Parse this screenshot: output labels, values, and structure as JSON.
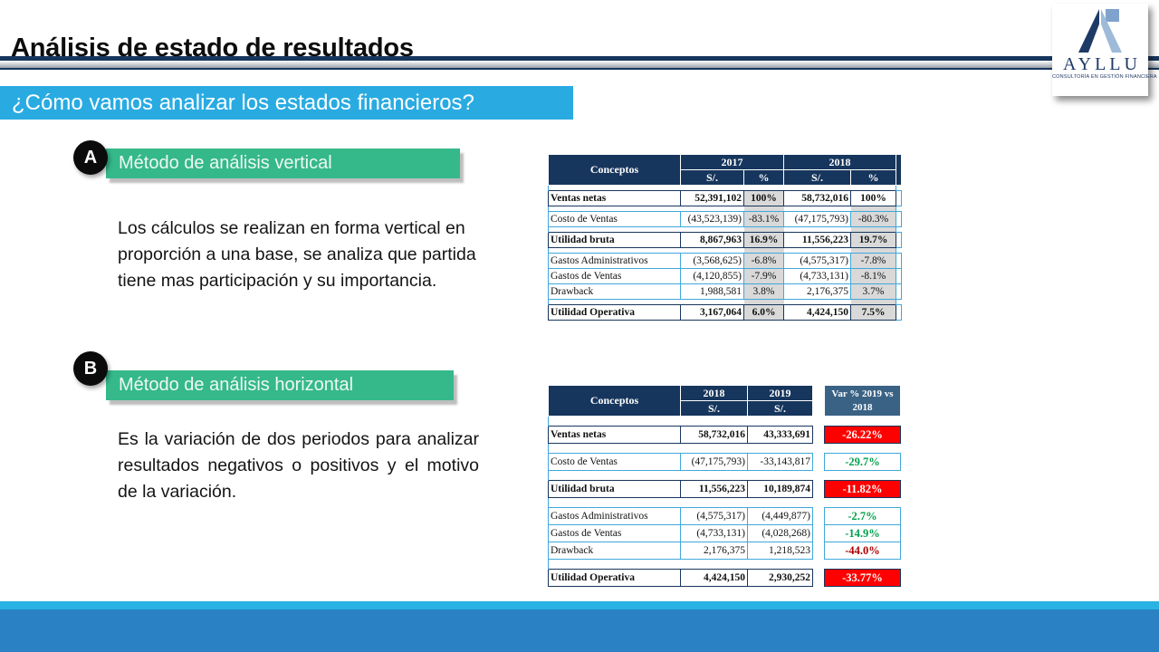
{
  "slide": {
    "title": "Análisis de estado de resultados",
    "banner": "¿Cómo vamos analizar los estados financieros?"
  },
  "logo": {
    "name": "AYLLU",
    "tagline": "CONSULTORÍA EN GESTIÓN FINANCIERA"
  },
  "methods": [
    {
      "letter": "A",
      "label": "Método de análisis vertical",
      "description": "Los cálculos se realizan en forma vertical en proporción a una base, se analiza que partida tiene mas participación y su importancia."
    },
    {
      "letter": "B",
      "label": "Método de análisis horizontal",
      "description": "Es la variación de dos periodos para analizar resultados negativos o positivos y  el motivo de la variación."
    }
  ],
  "colors": {
    "banner_blue": "#29ABE2",
    "footer_cyan": "#29B2E2",
    "footer_blue": "#2A82C5",
    "header_navy": "#17365D",
    "var_header_blue": "#3A6285",
    "green_banner": "#35B98A",
    "border_cyan": "#41A7DC",
    "gray_cell": "#D9D9D9",
    "red": "#FF0000",
    "green": "#00A14B",
    "dark_red": "#AE0000"
  },
  "chart_data": [
    {
      "type": "table",
      "header": {
        "concept": "Conceptos",
        "groups": [
          {
            "year": "2017",
            "subcols": [
              "S/.",
              "%"
            ]
          },
          {
            "year": "2018",
            "subcols": [
              "S/.",
              "%"
            ]
          }
        ]
      },
      "rows": [
        {
          "concept": "Ventas netas",
          "cells": [
            "52,391,102",
            "100%",
            "58,732,016",
            "100%"
          ],
          "bold": true,
          "highlight_last_pct": true,
          "spacer_before": true
        },
        {
          "concept": "Costo de Ventas",
          "cells": [
            "(43,523,139)",
            "-83.1%",
            "(47,175,793)",
            "-80.3%"
          ],
          "spacer_before": true
        },
        {
          "concept": "Utilidad bruta",
          "cells": [
            "8,867,963",
            "16.9%",
            "11,556,223",
            "19.7%"
          ],
          "bold": true,
          "spacer_before": true
        },
        {
          "concept": "Gastos Administrativos",
          "cells": [
            "(3,568,625)",
            "-6.8%",
            "(4,575,317)",
            "-7.8%"
          ],
          "spacer_before": true
        },
        {
          "concept": "Gastos de Ventas",
          "cells": [
            "(4,120,855)",
            "-7.9%",
            "(4,733,131)",
            "-8.1%"
          ]
        },
        {
          "concept": "Drawback",
          "cells": [
            "1,988,581",
            "3.8%",
            "2,176,375",
            "3.7%"
          ]
        },
        {
          "concept": "Utilidad Operativa",
          "cells": [
            "3,167,064",
            "6.0%",
            "4,424,150",
            "7.5%"
          ],
          "bold": true,
          "spacer_before": true
        }
      ]
    },
    {
      "type": "table",
      "header": {
        "concept": "Conceptos",
        "cols": [
          {
            "year": "2018",
            "sub": "S/."
          },
          {
            "year": "2019",
            "sub": "S/."
          }
        ],
        "var": "Var %  2019 vs 2018"
      },
      "rows": [
        {
          "concept": "Ventas netas",
          "cells": [
            "58,732,016",
            "43,333,691"
          ],
          "var": "-26.22%",
          "var_style": "red",
          "bold": true,
          "spacer_before": true
        },
        {
          "concept": "Costo de Ventas",
          "cells": [
            "(47,175,793)",
            "-33,143,817"
          ],
          "var": "-29.7%",
          "var_style": "green",
          "spacer_before": true
        },
        {
          "concept": "Utilidad bruta",
          "cells": [
            "11,556,223",
            "10,189,874"
          ],
          "var": "-11.82%",
          "var_style": "red",
          "bold": true,
          "spacer_before": true
        },
        {
          "concept": "Gastos Administrativos",
          "cells": [
            "(4,575,317)",
            "(4,449,877)"
          ],
          "var": "-2.7%",
          "var_style": "green",
          "spacer_before": true
        },
        {
          "concept": "Gastos de Ventas",
          "cells": [
            "(4,733,131)",
            "(4,028,268)"
          ],
          "var": "-14.9%",
          "var_style": "green"
        },
        {
          "concept": "Drawback",
          "cells": [
            "2,176,375",
            "1,218,523"
          ],
          "var": "-44.0%",
          "var_style": "darkred"
        },
        {
          "concept": "Utilidad Operativa",
          "cells": [
            "4,424,150",
            "2,930,252"
          ],
          "var": "-33.77%",
          "var_style": "red",
          "bold": true,
          "spacer_before": true
        }
      ]
    }
  ]
}
